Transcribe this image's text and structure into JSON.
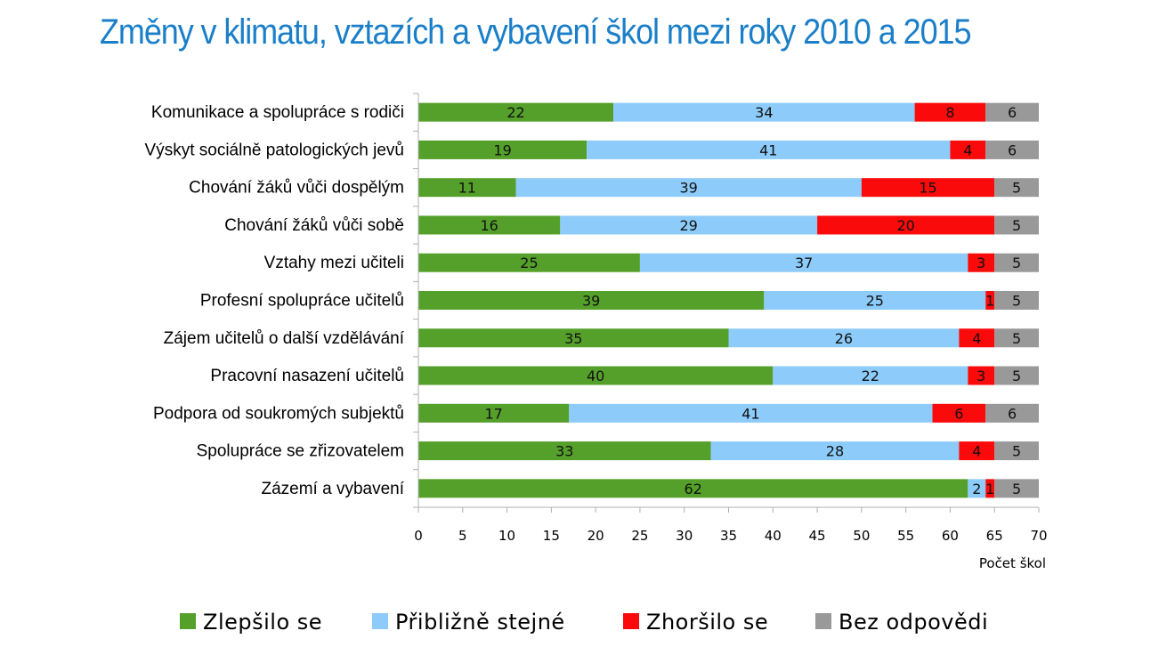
{
  "title": "Změny v klimatu, vztazích a vybavení škol mezi roky 2010 a 2015",
  "chart_data": {
    "type": "bar",
    "orientation": "horizontal",
    "stacked": true,
    "categories": [
      "Komunikace a spolupráce s rodiči",
      "Výskyt sociálně patologických jevů",
      "Chování žáků vůči dospělým",
      "Chování žáků vůči sobě",
      "Vztahy mezi učiteli",
      "Profesní spolupráce učitelů",
      "Zájem učitelů o další vzdělávání",
      "Pracovní nasazení učitelů",
      "Podpora od soukromých subjektů",
      "Spolupráce se zřizovatelem",
      "Zázemí a vybavení"
    ],
    "series": [
      {
        "name": "Zlepšilo se",
        "color": "#55a02a",
        "values": [
          22,
          19,
          11,
          16,
          25,
          39,
          35,
          40,
          17,
          33,
          62
        ]
      },
      {
        "name": "Přibližně stejné",
        "color": "#8ccbfa",
        "values": [
          34,
          41,
          39,
          29,
          37,
          25,
          26,
          22,
          41,
          28,
          2
        ]
      },
      {
        "name": "Zhoršilo se",
        "color": "#fa0a0a",
        "values": [
          8,
          4,
          15,
          20,
          3,
          1,
          4,
          3,
          6,
          4,
          1
        ]
      },
      {
        "name": "Bez odpovědi",
        "color": "#999999",
        "values": [
          6,
          6,
          5,
          5,
          5,
          5,
          5,
          5,
          6,
          5,
          5
        ]
      }
    ],
    "xlabel": "Počet škol",
    "ylabel": "",
    "xlim": [
      0,
      70
    ],
    "xticks": [
      0,
      5,
      10,
      15,
      20,
      25,
      30,
      35,
      40,
      45,
      50,
      55,
      60,
      65,
      70
    ],
    "grid": false,
    "legend_position": "bottom"
  }
}
